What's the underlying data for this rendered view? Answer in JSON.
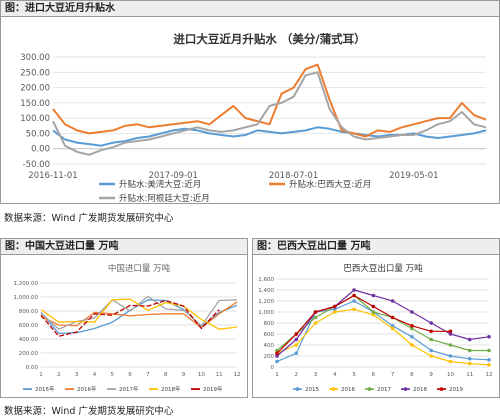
{
  "top": {
    "caption": "图：进口大豆近月升贴水",
    "source": "数据来源：Wind 广发期货发展研究中心"
  },
  "bottom": {
    "source": "数据来源：Wind 广发期货发展研究中心"
  },
  "left_panel": {
    "caption": "图：中国大豆进口量 万吨"
  },
  "right_panel": {
    "caption": "图：巴西大豆出口量 万吨"
  },
  "chart_data": [
    {
      "type": "line",
      "title": "进口大豆近月升贴水 （美分/蒲式耳）",
      "ylim": [
        -50,
        300
      ],
      "yticks": [
        "300.00",
        "250.00",
        "200.00",
        "150.00",
        "100.00",
        "50.00",
        "0.00",
        "-50.00"
      ],
      "xticks": [
        "2016-11-01",
        "2017-09-01",
        "2018-07-01",
        "2019-05-01"
      ],
      "x": [
        "2016-11",
        "2016-12",
        "2017-01",
        "2017-02",
        "2017-03",
        "2017-04",
        "2017-05",
        "2017-06",
        "2017-07",
        "2017-08",
        "2017-09",
        "2017-10",
        "2017-11",
        "2017-12",
        "2018-01",
        "2018-02",
        "2018-03",
        "2018-04",
        "2018-05",
        "2018-06",
        "2018-07",
        "2018-08",
        "2018-09",
        "2018-10",
        "2018-11",
        "2018-12",
        "2019-01",
        "2019-02",
        "2019-03",
        "2019-04",
        "2019-05",
        "2019-06",
        "2019-07",
        "2019-08",
        "2019-09",
        "2019-10",
        "2019-11"
      ],
      "series": [
        {
          "name": "升贴水:美湾大豆:近月",
          "color": "#5b9bd5",
          "values": [
            60,
            30,
            20,
            15,
            10,
            20,
            25,
            35,
            40,
            50,
            60,
            65,
            60,
            50,
            45,
            40,
            45,
            60,
            55,
            50,
            55,
            60,
            70,
            65,
            55,
            50,
            45,
            40,
            45,
            45,
            50,
            40,
            35,
            40,
            45,
            50,
            60
          ]
        },
        {
          "name": "升贴水:巴西大豆:近月",
          "color": "#ed7d31",
          "values": [
            130,
            80,
            60,
            50,
            55,
            60,
            75,
            80,
            70,
            75,
            80,
            85,
            90,
            80,
            110,
            140,
            100,
            90,
            80,
            180,
            200,
            260,
            275,
            160,
            60,
            50,
            40,
            60,
            55,
            70,
            80,
            90,
            100,
            100,
            150,
            110,
            95
          ]
        },
        {
          "name": "升贴水:阿根廷大豆:近月",
          "color": "#a5a5a5",
          "values": [
            90,
            10,
            -10,
            -20,
            -5,
            5,
            20,
            25,
            30,
            40,
            50,
            60,
            70,
            60,
            55,
            60,
            70,
            80,
            140,
            150,
            170,
            240,
            250,
            130,
            70,
            40,
            30,
            35,
            40,
            45,
            45,
            60,
            80,
            90,
            120,
            80,
            70
          ]
        }
      ],
      "legend_position": "bottom"
    },
    {
      "type": "line",
      "title": "中国进口量 万吨",
      "ylim": [
        0,
        1200
      ],
      "yticks": [
        "1,200.00",
        "1,000.00",
        "800.00",
        "600.00",
        "400.00",
        "200.00",
        "0.00"
      ],
      "categories": [
        "1",
        "2",
        "3",
        "4",
        "5",
        "6",
        "7",
        "8",
        "9",
        "10",
        "11",
        "12"
      ],
      "series": [
        {
          "name": "2015年",
          "color": "#5b9bd5",
          "values": [
            780,
            480,
            490,
            550,
            640,
            810,
            960,
            950,
            820,
            580,
            780,
            880
          ]
        },
        {
          "name": "2016年",
          "color": "#ed7d31",
          "values": [
            720,
            600,
            590,
            780,
            760,
            730,
            750,
            760,
            760,
            560,
            760,
            930
          ]
        },
        {
          "name": "2017年",
          "color": "#a5a5a5",
          "values": [
            770,
            540,
            650,
            700,
            960,
            800,
            1010,
            830,
            810,
            590,
            950,
            960
          ]
        },
        {
          "name": "2018年",
          "color": "#ffc000",
          "values": [
            820,
            640,
            650,
            640,
            960,
            970,
            810,
            920,
            870,
            680,
            540,
            570
          ]
        },
        {
          "name": "2019年",
          "color": "#c00000",
          "values": [
            740,
            440,
            500,
            760,
            740,
            880,
            870,
            950,
            870,
            550,
            820,
            null
          ]
        }
      ],
      "legend_position": "bottom"
    },
    {
      "type": "line",
      "title": "巴西大豆出口量 万吨",
      "ylim": [
        0,
        1600
      ],
      "yticks": [
        "1,600",
        "1,400",
        "1,200",
        "1,000",
        "800",
        "600",
        "400",
        "200",
        "0"
      ],
      "categories": [
        "1",
        "2",
        "3",
        "4",
        "5",
        "6",
        "7",
        "8",
        "9",
        "10",
        "11",
        "12"
      ],
      "series": [
        {
          "name": "2015",
          "color": "#5b9bd5",
          "values": [
            100,
            250,
            1000,
            1050,
            1200,
            1000,
            750,
            550,
            300,
            200,
            150,
            130
          ]
        },
        {
          "name": "2016",
          "color": "#ffc000",
          "values": [
            250,
            400,
            800,
            1000,
            1050,
            950,
            700,
            400,
            200,
            100,
            60,
            40
          ]
        },
        {
          "name": "2017",
          "color": "#70ad47",
          "values": [
            300,
            600,
            900,
            1100,
            1300,
            1000,
            900,
            700,
            500,
            400,
            300,
            300
          ]
        },
        {
          "name": "2018",
          "color": "#7030a0",
          "values": [
            200,
            500,
            1000,
            1100,
            1400,
            1300,
            1200,
            1000,
            800,
            600,
            500,
            550
          ]
        },
        {
          "name": "2019",
          "color": "#c00000",
          "values": [
            250,
            600,
            1000,
            1100,
            1300,
            1100,
            900,
            750,
            650,
            650,
            null,
            null
          ]
        }
      ],
      "legend_position": "bottom"
    }
  ]
}
